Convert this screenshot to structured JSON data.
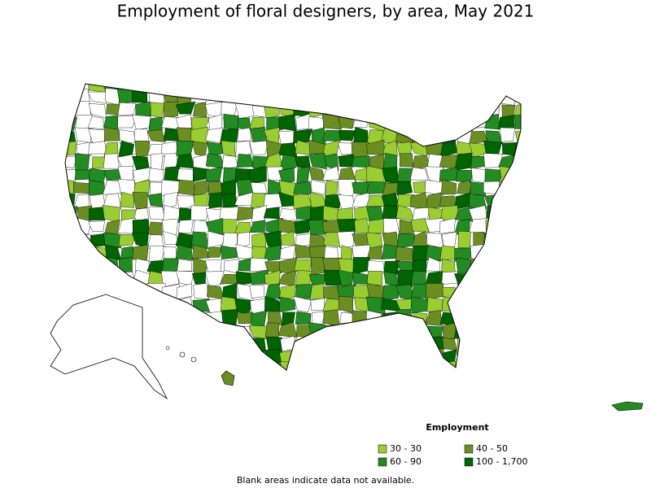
{
  "title": "Employment of floral designers, by area, May 2021",
  "legend": {
    "title": "Employment",
    "items": [
      {
        "label": "30 - 30",
        "color": "#9acd32"
      },
      {
        "label": "40 - 50",
        "color": "#6b8e23"
      },
      {
        "label": "60 - 90",
        "color": "#228b22"
      },
      {
        "label": "100 - 1,700",
        "color": "#006400"
      }
    ]
  },
  "note": "Blank areas indicate data not available."
}
